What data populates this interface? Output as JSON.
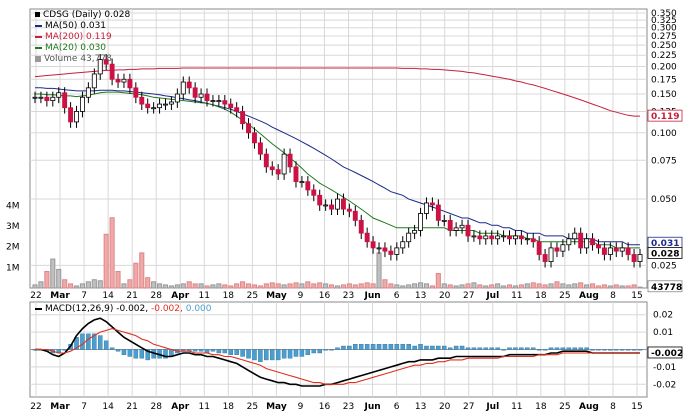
{
  "header": {
    "title": "CDSG (Daily) 0.028",
    "ma50": "MA(50) 0.031",
    "ma200": "MA(200) 0.119",
    "ma20": "MA(20) 0.030",
    "volume": "Volume 43,778",
    "macd_prefix": "MACD(12,26,9)",
    "macd_v1": "-0.002,",
    "macd_v2": "-0.002,",
    "macd_v3": "0.000"
  },
  "colors": {
    "up": "#ffffff",
    "down": "#cc1144",
    "ma50": "#1c2a8c",
    "ma200": "#c81e3c",
    "ma20": "#1f7a1f",
    "volume_up": "#c0c0c0",
    "volume_down": "#f0a8a8",
    "macd": "#000000",
    "signal": "#e0301e",
    "hist": "#4a9fd0",
    "grid": "#d8d8d8",
    "text": "#000000"
  },
  "chart_data": [
    {
      "type": "candlestick",
      "title": "CDSG (Daily)",
      "scale": "log",
      "ylim": [
        0.021,
        0.35
      ],
      "ticks": [
        "0.350",
        "0.325",
        "0.300",
        "0.275",
        "0.250",
        "0.225",
        "0.200",
        "0.175",
        "0.150",
        "0.125",
        "0.100",
        "0.075",
        "0.050",
        "0.025"
      ],
      "x_labels": [
        "22",
        "Mar",
        "7",
        "14",
        "21",
        "28",
        "Apr",
        "11",
        "18",
        "25",
        "May",
        "9",
        "16",
        "23",
        "Jun",
        "6",
        "13",
        "20",
        "27",
        "Jul",
        "11",
        "18",
        "25",
        "Aug",
        "8",
        "15"
      ],
      "close_tags": [
        "0.119",
        "0.031",
        "0.028",
        "0.025"
      ],
      "price_close": [
        0.145,
        0.145,
        0.14,
        0.145,
        0.152,
        0.13,
        0.112,
        0.125,
        0.145,
        0.16,
        0.185,
        0.215,
        0.205,
        0.175,
        0.17,
        0.175,
        0.16,
        0.145,
        0.135,
        0.13,
        0.13,
        0.135,
        0.135,
        0.138,
        0.15,
        0.17,
        0.16,
        0.145,
        0.15,
        0.14,
        0.14,
        0.14,
        0.135,
        0.13,
        0.125,
        0.11,
        0.1,
        0.09,
        0.08,
        0.07,
        0.068,
        0.065,
        0.08,
        0.07,
        0.06,
        0.06,
        0.055,
        0.052,
        0.047,
        0.047,
        0.045,
        0.05,
        0.045,
        0.044,
        0.04,
        0.035,
        0.032,
        0.03,
        0.03,
        0.029,
        0.028,
        0.03,
        0.032,
        0.035,
        0.036,
        0.043,
        0.048,
        0.047,
        0.04,
        0.04,
        0.036,
        0.037,
        0.038,
        0.034,
        0.034,
        0.033,
        0.034,
        0.033,
        0.034,
        0.034,
        0.033,
        0.034,
        0.033,
        0.033,
        0.032,
        0.028,
        0.026,
        0.03,
        0.029,
        0.031,
        0.033,
        0.035,
        0.03,
        0.033,
        0.031,
        0.03,
        0.028,
        0.03,
        0.029,
        0.03,
        0.028,
        0.026,
        0.028
      ],
      "ma20": [
        0.15,
        0.15,
        0.149,
        0.149,
        0.148,
        0.147,
        0.147,
        0.146,
        0.147,
        0.148,
        0.15,
        0.152,
        0.153,
        0.153,
        0.153,
        0.152,
        0.151,
        0.15,
        0.149,
        0.147,
        0.145,
        0.144,
        0.143,
        0.142,
        0.141,
        0.14,
        0.139,
        0.138,
        0.137,
        0.136,
        0.134,
        0.131,
        0.128,
        0.124,
        0.119,
        0.114,
        0.109,
        0.104,
        0.099,
        0.094,
        0.089,
        0.085,
        0.081,
        0.077,
        0.073,
        0.069,
        0.065,
        0.062,
        0.059,
        0.057,
        0.055,
        0.053,
        0.051,
        0.049,
        0.047,
        0.045,
        0.043,
        0.041,
        0.04,
        0.039,
        0.038,
        0.037,
        0.037,
        0.037,
        0.037,
        0.037,
        0.037,
        0.037,
        0.037,
        0.037,
        0.036,
        0.036,
        0.036,
        0.036,
        0.036,
        0.035,
        0.035,
        0.035,
        0.035,
        0.034,
        0.034,
        0.034,
        0.034,
        0.033,
        0.033,
        0.032,
        0.032,
        0.032,
        0.032,
        0.032,
        0.032,
        0.032,
        0.032,
        0.032,
        0.032,
        0.031,
        0.031,
        0.031,
        0.03,
        0.03,
        0.03,
        0.03,
        0.03
      ],
      "ma50": [
        0.16,
        0.16,
        0.159,
        0.159,
        0.158,
        0.157,
        0.156,
        0.155,
        0.155,
        0.155,
        0.155,
        0.156,
        0.156,
        0.156,
        0.155,
        0.155,
        0.154,
        0.153,
        0.152,
        0.151,
        0.15,
        0.149,
        0.147,
        0.146,
        0.144,
        0.143,
        0.141,
        0.14,
        0.138,
        0.136,
        0.134,
        0.132,
        0.13,
        0.128,
        0.125,
        0.122,
        0.119,
        0.116,
        0.113,
        0.11,
        0.106,
        0.103,
        0.1,
        0.097,
        0.094,
        0.091,
        0.088,
        0.085,
        0.082,
        0.079,
        0.076,
        0.073,
        0.07,
        0.068,
        0.066,
        0.064,
        0.062,
        0.06,
        0.058,
        0.056,
        0.054,
        0.053,
        0.052,
        0.05,
        0.049,
        0.048,
        0.047,
        0.046,
        0.045,
        0.044,
        0.043,
        0.042,
        0.041,
        0.041,
        0.04,
        0.039,
        0.039,
        0.038,
        0.038,
        0.037,
        0.037,
        0.036,
        0.036,
        0.035,
        0.035,
        0.035,
        0.034,
        0.034,
        0.034,
        0.034,
        0.033,
        0.033,
        0.033,
        0.033,
        0.033,
        0.032,
        0.032,
        0.032,
        0.032,
        0.032,
        0.031,
        0.031,
        0.031
      ],
      "ma200": [
        0.18,
        0.181,
        0.182,
        0.183,
        0.184,
        0.185,
        0.186,
        0.187,
        0.188,
        0.189,
        0.19,
        0.191,
        0.192,
        0.192,
        0.193,
        0.193,
        0.194,
        0.194,
        0.195,
        0.195,
        0.195,
        0.196,
        0.196,
        0.196,
        0.196,
        0.197,
        0.197,
        0.197,
        0.197,
        0.197,
        0.197,
        0.197,
        0.197,
        0.197,
        0.197,
        0.197,
        0.197,
        0.197,
        0.197,
        0.197,
        0.197,
        0.197,
        0.197,
        0.197,
        0.197,
        0.197,
        0.197,
        0.197,
        0.197,
        0.197,
        0.197,
        0.197,
        0.197,
        0.197,
        0.197,
        0.197,
        0.197,
        0.197,
        0.197,
        0.197,
        0.197,
        0.197,
        0.196,
        0.196,
        0.196,
        0.195,
        0.195,
        0.194,
        0.194,
        0.193,
        0.192,
        0.191,
        0.19,
        0.188,
        0.187,
        0.185,
        0.183,
        0.181,
        0.179,
        0.177,
        0.175,
        0.172,
        0.17,
        0.167,
        0.165,
        0.162,
        0.159,
        0.156,
        0.153,
        0.15,
        0.147,
        0.144,
        0.141,
        0.138,
        0.135,
        0.132,
        0.129,
        0.126,
        0.124,
        0.122,
        0.12,
        0.119,
        0.119
      ]
    },
    {
      "type": "bar",
      "title": "Volume",
      "ticks": [
        "4M",
        "3M",
        "2M",
        "1M"
      ],
      "ylim": [
        0,
        4500000
      ],
      "close_tag": "43778",
      "volume": [
        150000,
        300000,
        800000,
        1400000,
        900000,
        400000,
        200000,
        100000,
        200000,
        300000,
        400000,
        350000,
        2600000,
        3400000,
        800000,
        200000,
        400000,
        1200000,
        1700000,
        500000,
        300000,
        200000,
        150000,
        100000,
        150000,
        200000,
        300000,
        200000,
        200000,
        100000,
        150000,
        200000,
        150000,
        100000,
        200000,
        300000,
        200000,
        150000,
        100000,
        200000,
        250000,
        200000,
        150000,
        200000,
        250000,
        200000,
        300000,
        200000,
        250000,
        200000,
        150000,
        100000,
        150000,
        200000,
        150000,
        200000,
        250000,
        200000,
        1700000,
        400000,
        200000,
        150000,
        100000,
        150000,
        200000,
        250000,
        200000,
        100000,
        700000,
        200000,
        150000,
        100000,
        150000,
        200000,
        250000,
        150000,
        100000,
        150000,
        200000,
        100000,
        150000,
        100000,
        150000,
        200000,
        250000,
        200000,
        150000,
        200000,
        300000,
        200000,
        150000,
        200000,
        250000,
        150000,
        200000,
        100000,
        150000,
        100000,
        150000,
        100000,
        100000,
        150000,
        43778
      ]
    },
    {
      "type": "line",
      "title": "MACD(12,26,9)",
      "ylim": [
        -0.025,
        0.025
      ],
      "ticks": [
        "0.02",
        "0.01",
        "-0.01",
        "-0.02"
      ],
      "close_tag": "-0.002",
      "x_labels": [
        "22",
        "Mar",
        "7",
        "14",
        "21",
        "28",
        "Apr",
        "11",
        "18",
        "25",
        "May",
        "9",
        "16",
        "23",
        "Jun",
        "6",
        "13",
        "20",
        "27",
        "Jul",
        "11",
        "18",
        "25",
        "Aug",
        "8",
        "15"
      ],
      "macd": [
        0.0,
        0.0,
        -0.001,
        -0.003,
        -0.004,
        -0.002,
        0.002,
        0.008,
        0.012,
        0.015,
        0.017,
        0.018,
        0.016,
        0.013,
        0.01,
        0.007,
        0.005,
        0.003,
        0.001,
        -0.001,
        -0.002,
        -0.003,
        -0.004,
        -0.004,
        -0.003,
        -0.002,
        -0.002,
        -0.003,
        -0.003,
        -0.004,
        -0.004,
        -0.005,
        -0.006,
        -0.007,
        -0.008,
        -0.01,
        -0.012,
        -0.014,
        -0.016,
        -0.017,
        -0.018,
        -0.019,
        -0.019,
        -0.02,
        -0.02,
        -0.021,
        -0.021,
        -0.021,
        -0.021,
        -0.02,
        -0.02,
        -0.019,
        -0.018,
        -0.017,
        -0.016,
        -0.015,
        -0.014,
        -0.013,
        -0.012,
        -0.011,
        -0.01,
        -0.009,
        -0.008,
        -0.007,
        -0.007,
        -0.006,
        -0.006,
        -0.006,
        -0.005,
        -0.005,
        -0.005,
        -0.004,
        -0.004,
        -0.004,
        -0.004,
        -0.004,
        -0.004,
        -0.004,
        -0.004,
        -0.004,
        -0.003,
        -0.003,
        -0.003,
        -0.003,
        -0.003,
        -0.003,
        -0.003,
        -0.002,
        -0.002,
        -0.001,
        -0.001,
        -0.001,
        -0.001,
        -0.001,
        -0.002,
        -0.002,
        -0.002,
        -0.002,
        -0.002,
        -0.002,
        -0.002,
        -0.002,
        -0.002
      ],
      "signal": [
        0.0,
        0.0,
        0.0,
        -0.001,
        -0.002,
        -0.002,
        -0.001,
        0.001,
        0.003,
        0.006,
        0.008,
        0.01,
        0.011,
        0.012,
        0.011,
        0.01,
        0.009,
        0.008,
        0.006,
        0.005,
        0.003,
        0.002,
        0.001,
        0.0,
        -0.001,
        -0.001,
        -0.001,
        -0.002,
        -0.002,
        -0.002,
        -0.003,
        -0.003,
        -0.004,
        -0.004,
        -0.005,
        -0.006,
        -0.007,
        -0.008,
        -0.009,
        -0.011,
        -0.012,
        -0.013,
        -0.014,
        -0.015,
        -0.016,
        -0.017,
        -0.018,
        -0.019,
        -0.019,
        -0.02,
        -0.02,
        -0.02,
        -0.02,
        -0.019,
        -0.019,
        -0.018,
        -0.017,
        -0.016,
        -0.015,
        -0.014,
        -0.013,
        -0.012,
        -0.011,
        -0.01,
        -0.009,
        -0.009,
        -0.008,
        -0.008,
        -0.007,
        -0.007,
        -0.006,
        -0.006,
        -0.006,
        -0.005,
        -0.005,
        -0.005,
        -0.005,
        -0.005,
        -0.005,
        -0.004,
        -0.004,
        -0.004,
        -0.004,
        -0.004,
        -0.004,
        -0.003,
        -0.003,
        -0.003,
        -0.003,
        -0.002,
        -0.002,
        -0.002,
        -0.002,
        -0.002,
        -0.002,
        -0.002,
        -0.002,
        -0.002,
        -0.002,
        -0.002,
        -0.002,
        -0.002,
        -0.002
      ]
    }
  ]
}
